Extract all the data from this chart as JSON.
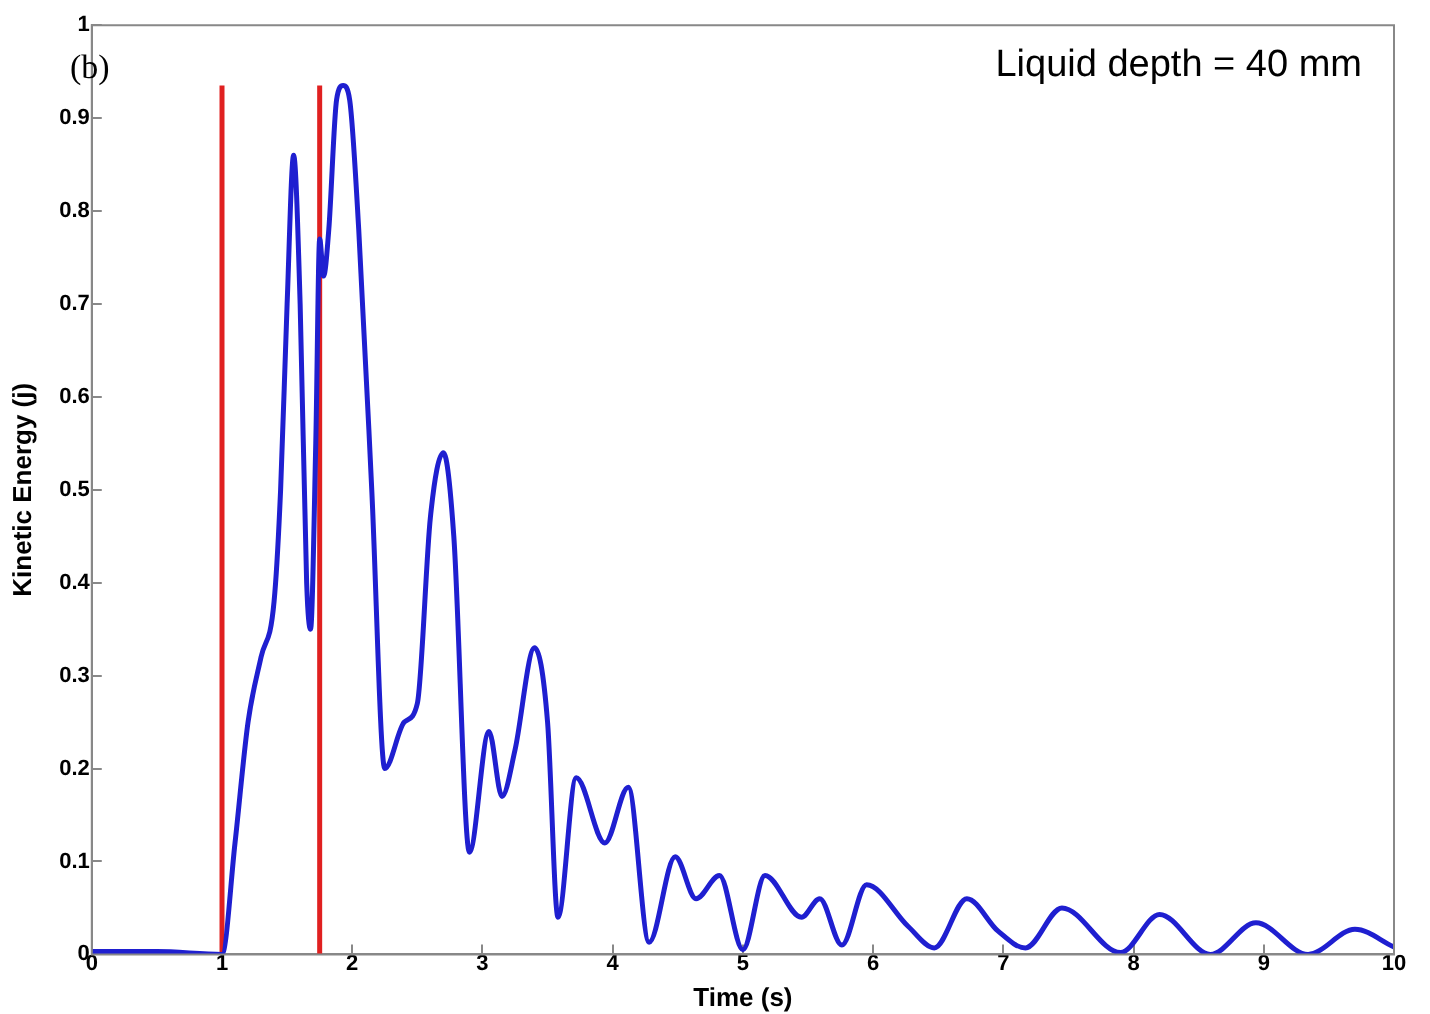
{
  "chart_data": {
    "type": "line",
    "xlabel": "Time (s)",
    "ylabel": "Kinetic Energy (j)",
    "annotations": [
      "(b)",
      "Liquid depth = 40 mm"
    ],
    "xlim": [
      0,
      10
    ],
    "xticks": [
      0,
      1,
      2,
      3,
      4,
      5,
      6,
      7,
      8,
      9,
      10
    ],
    "ylim": [
      0,
      1
    ],
    "yticks": [
      0,
      0.1,
      0.2,
      0.3,
      0.4,
      0.5,
      0.6,
      0.7,
      0.8,
      0.9,
      1
    ],
    "grid": false,
    "legend": false,
    "marker": "none",
    "line_style": "solid",
    "series": [
      {
        "color": "#1f1fd0",
        "x": [
          0,
          0.5,
          1,
          1.1,
          1.2,
          1.3,
          1.4,
          1.45,
          1.5,
          1.55,
          1.6,
          1.65,
          1.68,
          1.72,
          1.75,
          1.78,
          1.82,
          1.88,
          1.93,
          1.98,
          2.05,
          2.15,
          2.25,
          2.4,
          2.5,
          2.6,
          2.7,
          2.78,
          2.9,
          3.05,
          3.15,
          3.25,
          3.4,
          3.5,
          3.58,
          3.72,
          3.94,
          4.12,
          4.28,
          4.48,
          4.64,
          4.82,
          5.0,
          5.17,
          5.45,
          5.59,
          5.76,
          5.95,
          6.27,
          6.47,
          6.72,
          6.96,
          7.17,
          7.45,
          7.9,
          8.2,
          8.59,
          8.94,
          9.34,
          9.7,
          10
        ],
        "values": [
          0.003,
          0.003,
          0,
          0.12,
          0.25,
          0.32,
          0.38,
          0.5,
          0.7,
          0.86,
          0.7,
          0.4,
          0.35,
          0.55,
          0.77,
          0.73,
          0.78,
          0.92,
          0.935,
          0.92,
          0.78,
          0.5,
          0.2,
          0.25,
          0.27,
          0.47,
          0.54,
          0.45,
          0.11,
          0.24,
          0.17,
          0.22,
          0.33,
          0.25,
          0.04,
          0.19,
          0.12,
          0.18,
          0.013,
          0.105,
          0.06,
          0.085,
          0.005,
          0.085,
          0.04,
          0.06,
          0.01,
          0.075,
          0.03,
          0.007,
          0.06,
          0.025,
          0.007,
          0.05,
          0.002,
          0.043,
          0,
          0.034,
          0,
          0.027,
          0.008
        ]
      },
      {
        "color": "#e02020",
        "x": [
          1,
          1
        ],
        "values": [
          0,
          0.935
        ]
      },
      {
        "color": "#e02020",
        "x": [
          1.75,
          1.75
        ],
        "values": [
          0,
          0.935
        ]
      }
    ]
  }
}
